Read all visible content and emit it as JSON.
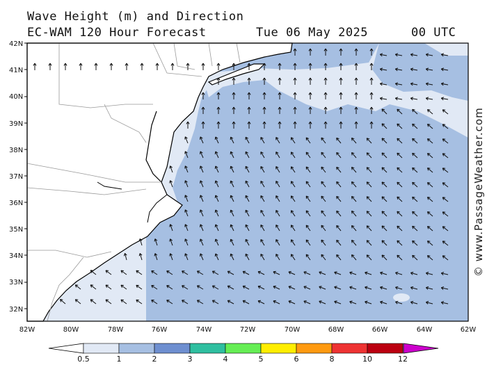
{
  "header": {
    "title": "Wave Height (m) and Direction",
    "model": "EC-WAM 120 Hour Forecast",
    "date": "Tue 06 May 2025",
    "time": "00 UTC"
  },
  "axes": {
    "lat_labels": [
      "42N",
      "41N",
      "40N",
      "39N",
      "38N",
      "37N",
      "36N",
      "35N",
      "34N",
      "33N",
      "32N"
    ],
    "lon_labels": [
      "82W",
      "80W",
      "78W",
      "76W",
      "74W",
      "72W",
      "70W",
      "68W",
      "66W",
      "64W",
      "62W"
    ]
  },
  "colorbar": {
    "labels": [
      "0.5",
      "1",
      "2",
      "3",
      "4",
      "5",
      "6",
      "8",
      "10",
      "12"
    ],
    "colors": [
      "#e1e9f5",
      "#a6bfe2",
      "#6e8fd0",
      "#2fbfa0",
      "#66ee55",
      "#ffee00",
      "#ff9a10",
      "#ee3333",
      "#bb0010",
      "#cc00cc"
    ]
  },
  "credit": "© www.PassageWeather.com",
  "map_colors": {
    "band_0_5_to_1": "#e1e9f5",
    "band_1_to_2": "#a6bfe2",
    "land": "#ffffff",
    "coast": "#000000",
    "borders": "#999999"
  }
}
